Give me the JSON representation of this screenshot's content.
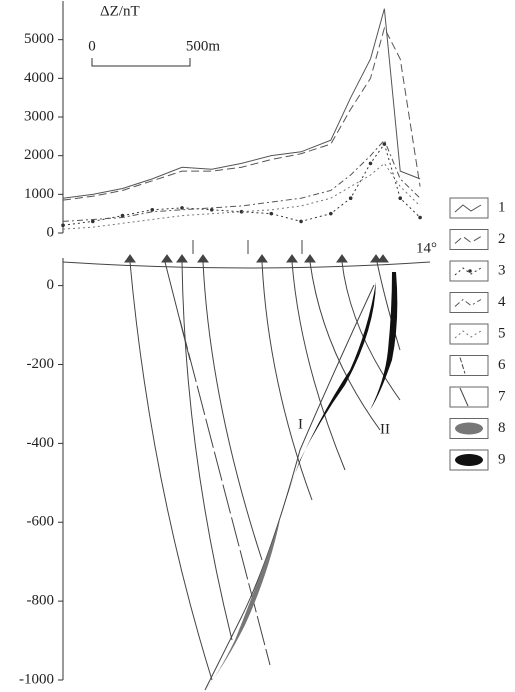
{
  "chart_data": [
    {
      "type": "line",
      "y_label": "ΔZ/nT",
      "scale_bar": {
        "start_label": "0",
        "end_label": "500m"
      },
      "x": [
        0,
        150,
        300,
        450,
        600,
        750,
        900,
        1050,
        1200,
        1350,
        1450,
        1550,
        1620,
        1700,
        1800
      ],
      "xlim": [
        0,
        1850
      ],
      "ylim": [
        0,
        6000
      ],
      "yticks": [
        0,
        1000,
        2000,
        3000,
        4000,
        5000
      ],
      "series": [
        {
          "name": "1",
          "color": "#555555",
          "dash": "none",
          "values": [
            900,
            1000,
            1150,
            1400,
            1700,
            1650,
            1800,
            2000,
            2100,
            2400,
            3500,
            4500,
            5800,
            1600,
            1400
          ]
        },
        {
          "name": "2",
          "color": "#555555",
          "dash": "8 4",
          "values": [
            850,
            950,
            1100,
            1350,
            1600,
            1600,
            1700,
            1900,
            2050,
            2300,
            3200,
            4000,
            5300,
            4500,
            1200
          ]
        },
        {
          "name": "3",
          "color": "#333333",
          "dash": "2 3",
          "dots": true,
          "values": [
            200,
            300,
            450,
            600,
            650,
            600,
            550,
            500,
            300,
            500,
            900,
            1800,
            2300,
            900,
            400
          ]
        },
        {
          "name": "4",
          "color": "#555555",
          "dash": "6 3 2 3",
          "values": [
            300,
            350,
            400,
            550,
            600,
            650,
            700,
            800,
            900,
            1100,
            1500,
            2000,
            2400,
            1400,
            900
          ]
        },
        {
          "name": "5",
          "color": "#777777",
          "dash": "2 3",
          "values": [
            100,
            150,
            250,
            350,
            450,
            500,
            550,
            600,
            700,
            900,
            1200,
            1500,
            1800,
            1200,
            700
          ]
        }
      ]
    },
    {
      "type": "section",
      "ylim": [
        -1000,
        70
      ],
      "yticks": [
        0,
        -200,
        -400,
        -600,
        -800,
        -1000
      ],
      "legend": [
        "6",
        "7",
        "8",
        "9"
      ],
      "annotations": [
        "14°",
        "I",
        "II"
      ]
    }
  ]
}
